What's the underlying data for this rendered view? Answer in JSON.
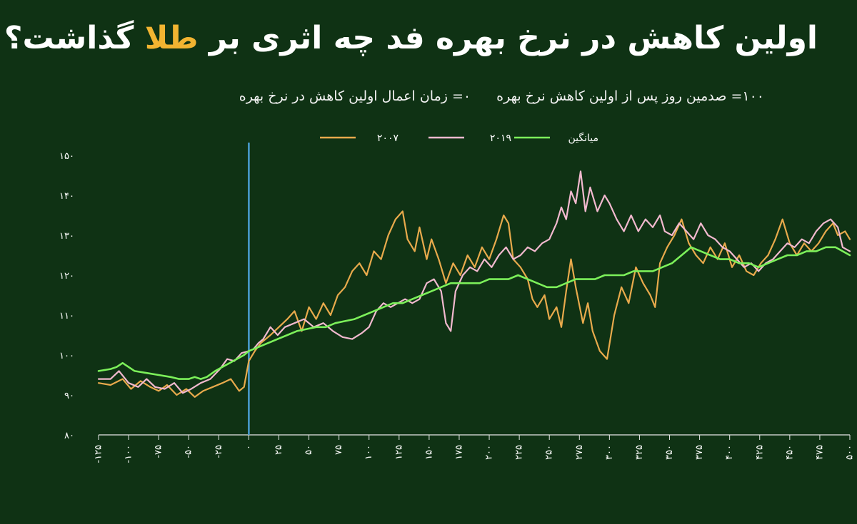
{
  "title": {
    "before": "اولین کاهش در نرخ بهره فد چه اثری بر ",
    "highlight": "طلا",
    "after": " گذاشت؟"
  },
  "subtitle": {
    "left_note": "۱۰۰= صدمین روز پس از اولین کاهش نرخ بهره",
    "right_note": "۰= زمان اعمال اولین کاهش در نرخ بهره"
  },
  "colors": {
    "background": "#0f3214",
    "2007": "#e8aa4c",
    "2019": "#f2b9cf",
    "avg": "#7cf05a",
    "marker": "#4a9fd4",
    "highlight": "#f2b431"
  },
  "chart_data": {
    "type": "line",
    "xlim": [
      -125,
      500
    ],
    "ylim": [
      80,
      150
    ],
    "x_ticks": [
      -125,
      -100,
      -75,
      -50,
      -25,
      0,
      25,
      50,
      75,
      100,
      125,
      150,
      175,
      200,
      225,
      250,
      275,
      300,
      325,
      350,
      375,
      400,
      425,
      450,
      475,
      500
    ],
    "x_tick_labels": [
      "-۱۲۵",
      "-۱۰۰",
      "-۷۵",
      "-۵۰",
      "-۲۵",
      "۰",
      "۲۵",
      "۵۰",
      "۷۵",
      "۱۰۰",
      "۱۲۵",
      "۱۵۰",
      "۱۷۵",
      "۲۰۰",
      "۲۲۵",
      "۲۵۰",
      "۲۷۵",
      "۳۰۰",
      "۳۲۵",
      "۳۵۰",
      "۳۷۵",
      "۴۰۰",
      "۴۲۵",
      "۴۵۰",
      "۴۷۵",
      "۵۰۰"
    ],
    "y_ticks": [
      80,
      90,
      100,
      110,
      120,
      130,
      140,
      150
    ],
    "y_tick_labels": [
      "۸۰",
      "۹۰",
      "۱۰۰",
      "۱۱۰",
      "۱۲۰",
      "۱۳۰",
      "۱۴۰",
      "۱۵۰"
    ],
    "vertical_marker_x": 0,
    "legend": [
      {
        "key": "2007",
        "label": "۲۰۰۷"
      },
      {
        "key": "2019",
        "label": "۲۰۱۹"
      },
      {
        "key": "avg",
        "label": "میانگین"
      }
    ],
    "series": [
      {
        "key": "2007",
        "name": "۲۰۰۷",
        "points": [
          [
            -125,
            93
          ],
          [
            -115,
            92.5
          ],
          [
            -105,
            94
          ],
          [
            -98,
            91.5
          ],
          [
            -90,
            93.5
          ],
          [
            -82,
            92
          ],
          [
            -75,
            91
          ],
          [
            -68,
            92.5
          ],
          [
            -60,
            90
          ],
          [
            -52,
            91.5
          ],
          [
            -45,
            89.5
          ],
          [
            -38,
            91
          ],
          [
            -30,
            92
          ],
          [
            -22,
            93
          ],
          [
            -15,
            94
          ],
          [
            -8,
            91
          ],
          [
            -4,
            92
          ],
          [
            0,
            98.5
          ],
          [
            5,
            101
          ],
          [
            10,
            103
          ],
          [
            18,
            105
          ],
          [
            25,
            107
          ],
          [
            32,
            109
          ],
          [
            38,
            111
          ],
          [
            44,
            106
          ],
          [
            50,
            112
          ],
          [
            56,
            109
          ],
          [
            62,
            113
          ],
          [
            68,
            110
          ],
          [
            74,
            115
          ],
          [
            80,
            117
          ],
          [
            86,
            121
          ],
          [
            92,
            123
          ],
          [
            98,
            120
          ],
          [
            104,
            126
          ],
          [
            110,
            124
          ],
          [
            116,
            130
          ],
          [
            122,
            134
          ],
          [
            128,
            136
          ],
          [
            132,
            129
          ],
          [
            138,
            126
          ],
          [
            142,
            132
          ],
          [
            148,
            124
          ],
          [
            152,
            129
          ],
          [
            158,
            124
          ],
          [
            164,
            118
          ],
          [
            170,
            123
          ],
          [
            176,
            120
          ],
          [
            182,
            125
          ],
          [
            188,
            122
          ],
          [
            194,
            127
          ],
          [
            200,
            124
          ],
          [
            206,
            129
          ],
          [
            212,
            135
          ],
          [
            216,
            133
          ],
          [
            220,
            124
          ],
          [
            226,
            122
          ],
          [
            232,
            119
          ],
          [
            236,
            114
          ],
          [
            240,
            112
          ],
          [
            246,
            115
          ],
          [
            250,
            109
          ],
          [
            256,
            112
          ],
          [
            260,
            107
          ],
          [
            264,
            116
          ],
          [
            268,
            124
          ],
          [
            272,
            117
          ],
          [
            278,
            108
          ],
          [
            282,
            113
          ],
          [
            286,
            106
          ],
          [
            292,
            101
          ],
          [
            298,
            99
          ],
          [
            304,
            110
          ],
          [
            310,
            117
          ],
          [
            316,
            113
          ],
          [
            322,
            122
          ],
          [
            328,
            118
          ],
          [
            334,
            115
          ],
          [
            338,
            112
          ],
          [
            342,
            123
          ],
          [
            348,
            127
          ],
          [
            354,
            130
          ],
          [
            360,
            134
          ],
          [
            366,
            128
          ],
          [
            372,
            125
          ],
          [
            378,
            123
          ],
          [
            384,
            127
          ],
          [
            390,
            124
          ],
          [
            396,
            128
          ],
          [
            402,
            122
          ],
          [
            408,
            125
          ],
          [
            414,
            121
          ],
          [
            420,
            120
          ],
          [
            426,
            123
          ],
          [
            432,
            125
          ],
          [
            438,
            129
          ],
          [
            444,
            134
          ],
          [
            450,
            128
          ],
          [
            456,
            125
          ],
          [
            462,
            128
          ],
          [
            468,
            126
          ],
          [
            474,
            128
          ],
          [
            480,
            131
          ],
          [
            486,
            133
          ],
          [
            490,
            130
          ],
          [
            496,
            131
          ],
          [
            500,
            129
          ]
        ]
      },
      {
        "key": "2019",
        "name": "۲۰۱۹",
        "points": [
          [
            -125,
            94
          ],
          [
            -115,
            94
          ],
          [
            -108,
            96
          ],
          [
            -100,
            93
          ],
          [
            -92,
            92
          ],
          [
            -85,
            94
          ],
          [
            -78,
            92
          ],
          [
            -70,
            91.5
          ],
          [
            -62,
            93
          ],
          [
            -55,
            90.5
          ],
          [
            -48,
            91.5
          ],
          [
            -40,
            93
          ],
          [
            -32,
            94
          ],
          [
            -24,
            96.5
          ],
          [
            -18,
            99
          ],
          [
            -12,
            98.5
          ],
          [
            -6,
            100.5
          ],
          [
            0,
            101
          ],
          [
            4,
            101.5
          ],
          [
            8,
            103
          ],
          [
            12,
            104
          ],
          [
            18,
            107
          ],
          [
            24,
            105
          ],
          [
            30,
            107
          ],
          [
            38,
            108
          ],
          [
            46,
            109
          ],
          [
            54,
            107
          ],
          [
            62,
            108
          ],
          [
            70,
            106
          ],
          [
            78,
            104.5
          ],
          [
            86,
            104
          ],
          [
            94,
            105.5
          ],
          [
            100,
            107
          ],
          [
            106,
            111
          ],
          [
            112,
            113
          ],
          [
            118,
            112
          ],
          [
            124,
            113
          ],
          [
            130,
            114
          ],
          [
            136,
            113
          ],
          [
            142,
            114
          ],
          [
            148,
            118
          ],
          [
            154,
            119
          ],
          [
            160,
            116
          ],
          [
            164,
            108
          ],
          [
            168,
            106
          ],
          [
            172,
            116
          ],
          [
            178,
            120
          ],
          [
            184,
            122
          ],
          [
            190,
            121
          ],
          [
            196,
            124
          ],
          [
            202,
            122
          ],
          [
            208,
            125
          ],
          [
            214,
            127
          ],
          [
            220,
            124
          ],
          [
            226,
            125
          ],
          [
            232,
            127
          ],
          [
            238,
            126
          ],
          [
            244,
            128
          ],
          [
            250,
            129
          ],
          [
            256,
            133
          ],
          [
            260,
            137
          ],
          [
            264,
            134
          ],
          [
            268,
            141
          ],
          [
            272,
            138
          ],
          [
            276,
            146
          ],
          [
            280,
            136
          ],
          [
            284,
            142
          ],
          [
            290,
            136
          ],
          [
            296,
            140
          ],
          [
            300,
            138
          ],
          [
            306,
            134
          ],
          [
            312,
            131
          ],
          [
            318,
            135
          ],
          [
            324,
            131
          ],
          [
            330,
            134
          ],
          [
            336,
            132
          ],
          [
            342,
            135
          ],
          [
            346,
            131
          ],
          [
            352,
            130
          ],
          [
            358,
            133
          ],
          [
            364,
            131
          ],
          [
            370,
            129
          ],
          [
            376,
            133
          ],
          [
            382,
            130
          ],
          [
            388,
            129
          ],
          [
            394,
            127
          ],
          [
            400,
            126
          ],
          [
            406,
            124
          ],
          [
            412,
            122
          ],
          [
            418,
            123
          ],
          [
            424,
            121
          ],
          [
            430,
            123
          ],
          [
            436,
            124
          ],
          [
            442,
            126
          ],
          [
            448,
            128
          ],
          [
            454,
            127
          ],
          [
            460,
            129
          ],
          [
            466,
            128
          ],
          [
            472,
            131
          ],
          [
            478,
            133
          ],
          [
            484,
            134
          ],
          [
            490,
            132
          ],
          [
            494,
            127
          ],
          [
            500,
            126
          ]
        ]
      },
      {
        "key": "avg",
        "name": "میانگین",
        "points": [
          [
            -125,
            96
          ],
          [
            -115,
            96.5
          ],
          [
            -110,
            97
          ],
          [
            -105,
            98
          ],
          [
            -100,
            97
          ],
          [
            -95,
            96
          ],
          [
            -85,
            95.5
          ],
          [
            -75,
            95
          ],
          [
            -65,
            94.5
          ],
          [
            -58,
            94
          ],
          [
            -50,
            94
          ],
          [
            -45,
            94.5
          ],
          [
            -40,
            94
          ],
          [
            -35,
            94.5
          ],
          [
            -28,
            96
          ],
          [
            -22,
            97
          ],
          [
            -16,
            98
          ],
          [
            -10,
            99
          ],
          [
            -4,
            100
          ],
          [
            0,
            101
          ],
          [
            8,
            102
          ],
          [
            16,
            103
          ],
          [
            24,
            104
          ],
          [
            32,
            105
          ],
          [
            40,
            106
          ],
          [
            48,
            106.5
          ],
          [
            56,
            107
          ],
          [
            64,
            107
          ],
          [
            72,
            108
          ],
          [
            80,
            108.5
          ],
          [
            88,
            109
          ],
          [
            96,
            110
          ],
          [
            104,
            111
          ],
          [
            112,
            112
          ],
          [
            120,
            113
          ],
          [
            128,
            113
          ],
          [
            136,
            114
          ],
          [
            144,
            115
          ],
          [
            152,
            116
          ],
          [
            160,
            117
          ],
          [
            168,
            118
          ],
          [
            176,
            118
          ],
          [
            184,
            118
          ],
          [
            192,
            118
          ],
          [
            200,
            119
          ],
          [
            208,
            119
          ],
          [
            216,
            119
          ],
          [
            224,
            120
          ],
          [
            232,
            119
          ],
          [
            240,
            118
          ],
          [
            248,
            117
          ],
          [
            256,
            117
          ],
          [
            264,
            118
          ],
          [
            272,
            119
          ],
          [
            280,
            119
          ],
          [
            288,
            119
          ],
          [
            296,
            120
          ],
          [
            304,
            120
          ],
          [
            312,
            120
          ],
          [
            320,
            121
          ],
          [
            328,
            121
          ],
          [
            336,
            121
          ],
          [
            344,
            122
          ],
          [
            352,
            123
          ],
          [
            360,
            125
          ],
          [
            368,
            127
          ],
          [
            376,
            126
          ],
          [
            384,
            125
          ],
          [
            392,
            124
          ],
          [
            400,
            124
          ],
          [
            408,
            123
          ],
          [
            416,
            123
          ],
          [
            424,
            122
          ],
          [
            432,
            123
          ],
          [
            440,
            124
          ],
          [
            448,
            125
          ],
          [
            456,
            125
          ],
          [
            464,
            126
          ],
          [
            472,
            126
          ],
          [
            480,
            127
          ],
          [
            488,
            127
          ],
          [
            494,
            126
          ],
          [
            500,
            125
          ]
        ]
      }
    ]
  }
}
